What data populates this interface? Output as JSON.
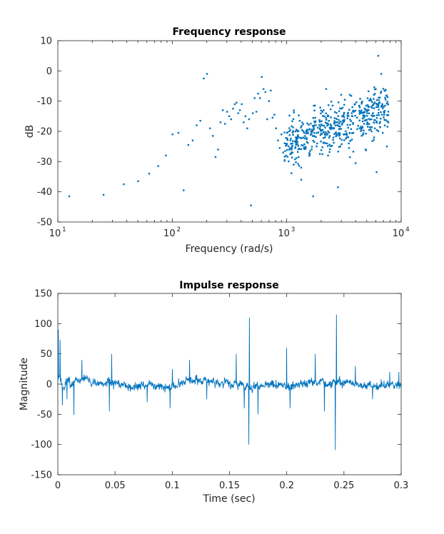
{
  "colors": {
    "series": "#0072BD",
    "axes": "#262626",
    "background": "#ffffff"
  },
  "chart_data": [
    {
      "type": "scatter",
      "title": "Frequency response",
      "xlabel": "Frequency (rad/s)",
      "ylabel": "dB",
      "xscale": "log",
      "xlim": [
        10,
        10000
      ],
      "ylim": [
        -50,
        10
      ],
      "grid": false,
      "x_ticks": [
        {
          "base": "10",
          "exp": "1",
          "value": 10
        },
        {
          "base": "10",
          "exp": "2",
          "value": 100
        },
        {
          "base": "10",
          "exp": "3",
          "value": 1000
        },
        {
          "base": "10",
          "exp": "4",
          "value": 10000
        }
      ],
      "y_ticks": [
        "10",
        "0",
        "-10",
        "-20",
        "-30",
        "-40",
        "-50"
      ],
      "series": [
        {
          "marker": "point",
          "x": [
            12.6,
            25.1,
            37.7,
            50.3,
            62.8,
            75.4,
            88.0,
            100.5,
            113.1,
            125.7,
            138.2,
            150.8,
            163.4,
            175.9,
            188.5,
            201.1,
            213.6,
            226.2,
            238.8,
            251.3,
            263.9,
            276.5,
            289.0,
            301.6,
            314.2,
            326.7,
            339.3,
            351.9,
            364.4,
            377.0,
            390,
            405,
            420,
            436,
            452,
            469,
            487,
            505,
            524,
            543,
            563,
            584,
            606,
            628,
            651,
            675,
            700,
            726,
            752,
            780,
            808,
            838,
            869,
            900,
            930,
            960,
            1000,
            1050,
            1100,
            1150,
            1200,
            1270,
            1340,
            1420,
            1500,
            1600,
            1700,
            1800,
            1950,
            2100,
            2250,
            2400,
            2600,
            2800,
            3000,
            3250,
            3500,
            3750,
            4000,
            4300,
            4600,
            4900,
            5200,
            5500,
            5800,
            6000,
            6100,
            6300,
            6500,
            6700,
            6900,
            7100,
            7300,
            7500,
            7700
          ],
          "y": [
            -41.5,
            -41,
            -37.5,
            -36.5,
            -34,
            -31.5,
            -28,
            -21,
            -20.5,
            -39.5,
            -24.5,
            -23,
            -18,
            -16.5,
            -2.5,
            -1,
            -19,
            -21.5,
            -28.5,
            -26,
            -17,
            -13,
            -17.5,
            -13.5,
            -15,
            -16,
            -12.5,
            -11,
            -10.5,
            -14,
            -13,
            -11,
            -17,
            -15,
            -19,
            -16,
            -44.5,
            -14,
            -9,
            -13.5,
            -7.5,
            -9,
            -2,
            -6,
            -7,
            -16,
            -10,
            -6.5,
            -15.5,
            -14.5,
            -19,
            -23,
            -25.5,
            -21,
            -27,
            -29.5,
            -24.5,
            -20,
            -26,
            -31,
            -22,
            -28.5,
            -36,
            -20.5,
            -23.5,
            -26.5,
            -41.5,
            -18,
            -27.5,
            -13,
            -24,
            -19,
            -17.5,
            -38.5,
            -12.5,
            -21,
            -25.5,
            -15,
            -30.5,
            -11.5,
            -18.5,
            -26,
            -13,
            -16,
            -22,
            -6,
            -33.5,
            5,
            -10.5,
            -1,
            -20.5,
            -14.5,
            -9.5,
            -25,
            -11
          ],
          "note_density": "dense cluster of points between 1000 and 7700 rad/s spanning roughly -35 to -5 dB"
        }
      ]
    },
    {
      "type": "line",
      "title": "Impulse response",
      "xlabel": "Time (sec)",
      "ylabel": "Magnitude",
      "xlim": [
        0,
        0.3
      ],
      "ylim": [
        -150,
        150
      ],
      "grid": false,
      "x_ticks": [
        "0",
        "0.05",
        "0.1",
        "0.15",
        "0.2",
        "0.25",
        "0.3"
      ],
      "y_ticks": [
        "150",
        "100",
        "50",
        "0",
        "-50",
        "-100",
        "-150"
      ],
      "series": [
        {
          "samples": 1200,
          "spikes": [
            {
              "t": 0.0005,
              "y": 90
            },
            {
              "t": 0.002,
              "y": 73
            },
            {
              "t": 0.004,
              "y": -35
            },
            {
              "t": 0.008,
              "y": -25
            },
            {
              "t": 0.014,
              "y": -51
            },
            {
              "t": 0.021,
              "y": 40
            },
            {
              "t": 0.045,
              "y": -45
            },
            {
              "t": 0.047,
              "y": 50
            },
            {
              "t": 0.078,
              "y": -30
            },
            {
              "t": 0.098,
              "y": -40
            },
            {
              "t": 0.1,
              "y": 25
            },
            {
              "t": 0.115,
              "y": 40
            },
            {
              "t": 0.13,
              "y": -25
            },
            {
              "t": 0.156,
              "y": 50
            },
            {
              "t": 0.163,
              "y": -40
            },
            {
              "t": 0.167,
              "y": -100
            },
            {
              "t": 0.1675,
              "y": 110
            },
            {
              "t": 0.175,
              "y": -50
            },
            {
              "t": 0.2,
              "y": 60
            },
            {
              "t": 0.203,
              "y": -40
            },
            {
              "t": 0.225,
              "y": 50
            },
            {
              "t": 0.233,
              "y": -45
            },
            {
              "t": 0.2425,
              "y": -109
            },
            {
              "t": 0.2435,
              "y": 115
            },
            {
              "t": 0.26,
              "y": 30
            },
            {
              "t": 0.275,
              "y": -25
            },
            {
              "t": 0.29,
              "y": 20
            },
            {
              "t": 0.298,
              "y": 20
            }
          ]
        }
      ]
    }
  ]
}
